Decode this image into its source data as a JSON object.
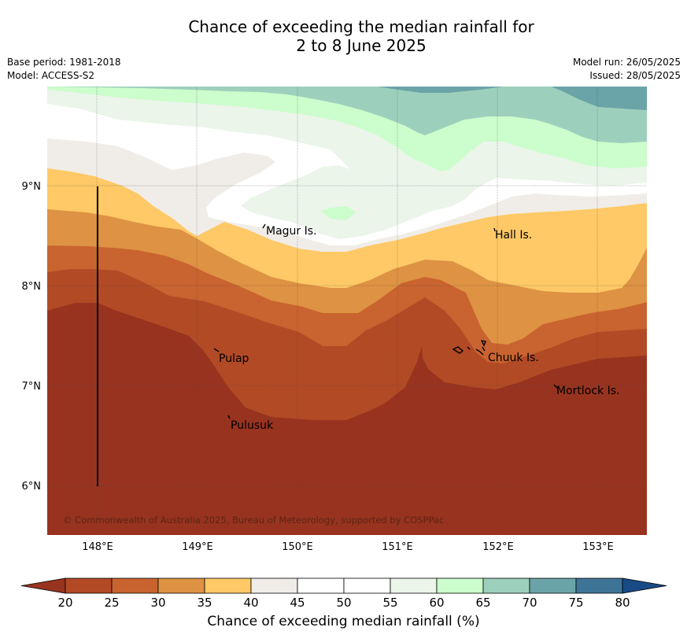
{
  "header": {
    "title_line1": "Chance of exceeding the median rainfall for",
    "title_line2": "2 to 8 June 2025",
    "base_period": "Base period: 1981-2018",
    "model": "Model: ACCESS-S2",
    "model_run": "Model run: 26/05/2025",
    "issued": "Issued: 28/05/2025"
  },
  "map": {
    "lat_labels": [
      "9°N",
      "8°N",
      "7°N",
      "6°N"
    ],
    "lon_labels": [
      "148°E",
      "149°E",
      "150°E",
      "151°E",
      "152°E",
      "153°E"
    ],
    "places": [
      "Magur Is.",
      "Hall Is.",
      "Pulap",
      "Chuuk Is.",
      "Mortlock Is.",
      "Pulusuk"
    ],
    "copyright": "© Commonwealth of Australia 2025, Bureau of Meteorology, supported by COSPPac"
  },
  "colorbar": {
    "ticks": [
      "20",
      "25",
      "30",
      "35",
      "40",
      "45",
      "50",
      "55",
      "60",
      "65",
      "70",
      "75",
      "80"
    ],
    "colors": [
      "#b24a25",
      "#c9632f",
      "#de9243",
      "#fec966",
      "#f0ede8",
      "#ffffff",
      "#ffffff",
      "#ebf5ea",
      "#ccfdcc",
      "#9dd0bc",
      "#6aa4a8",
      "#3e7597"
    ],
    "under_color": "#98331f",
    "over_color": "#184b86",
    "label": "Chance of exceeding median rainfall (%)"
  }
}
